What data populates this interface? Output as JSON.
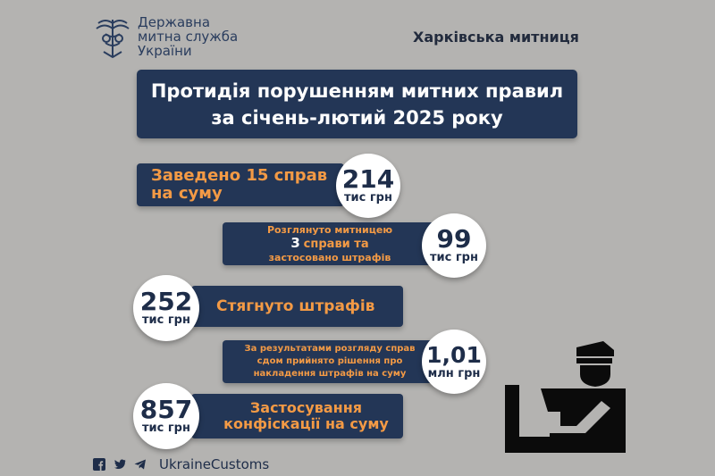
{
  "logo": {
    "line1": "Державна",
    "line2": "митна служба",
    "line3": "України"
  },
  "region": "Харківська митниця",
  "title": {
    "line1": "Протидія порушенням митних правил",
    "line2": "за січень-лютий 2025 року"
  },
  "stats": {
    "cases": {
      "text1": "Заведено 15 справ",
      "text2": "на суму",
      "value": "214",
      "unit": "тис грн"
    },
    "reviewed": {
      "text1": "Розглянуто митницею",
      "text2": "3",
      "text2b": "справи та",
      "text3": "застосовано штрафів",
      "value": "99",
      "unit": "тис грн"
    },
    "collected": {
      "value": "252",
      "unit": "тис грн",
      "text": "Стягнуто штрафів"
    },
    "court": {
      "text1": "За результатами розгляду справ",
      "text2": "сдом прийнято рішення про",
      "text3": "накладення штрафів на суму",
      "value": "1,01",
      "unit": "млн грн"
    },
    "confiscation": {
      "value": "857",
      "unit": "тис грн",
      "text1": "Застосування",
      "text2": "конфіскації на суму"
    }
  },
  "footer": {
    "handle": "UkraineCustoms"
  },
  "icons": {
    "facebook": "facebook-icon",
    "twitter": "twitter-icon",
    "telegram": "telegram-icon",
    "emblem": "customs-emblem-icon",
    "officer": "customs-officer-icon"
  },
  "colors": {
    "background": "#b4b3b1",
    "navy": "#233656",
    "orange": "#f39a45"
  }
}
